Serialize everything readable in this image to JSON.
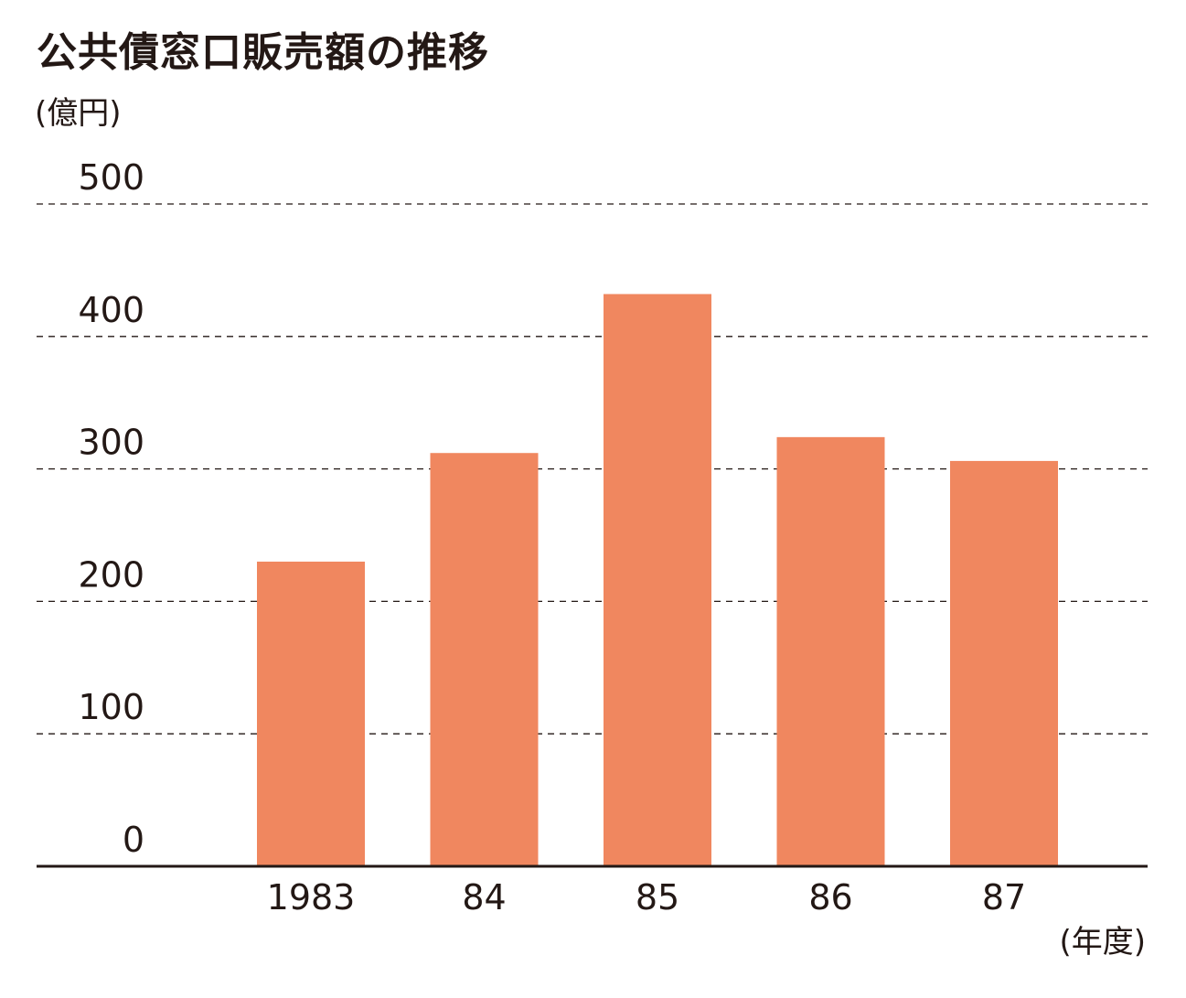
{
  "title": "公共債窓口販売額の推移",
  "y_unit": "(億円)",
  "x_unit": "(年度)",
  "colors": {
    "bar": "#f0875f",
    "text": "#231815",
    "grid": "#231815"
  },
  "chart_data": {
    "type": "bar",
    "categories": [
      "1983",
      "84",
      "85",
      "86",
      "87"
    ],
    "values": [
      230,
      312,
      432,
      324,
      306
    ],
    "ylim": [
      0,
      500
    ],
    "yticks": [
      0,
      100,
      200,
      300,
      400,
      500
    ],
    "grid": true,
    "legend": "none"
  }
}
